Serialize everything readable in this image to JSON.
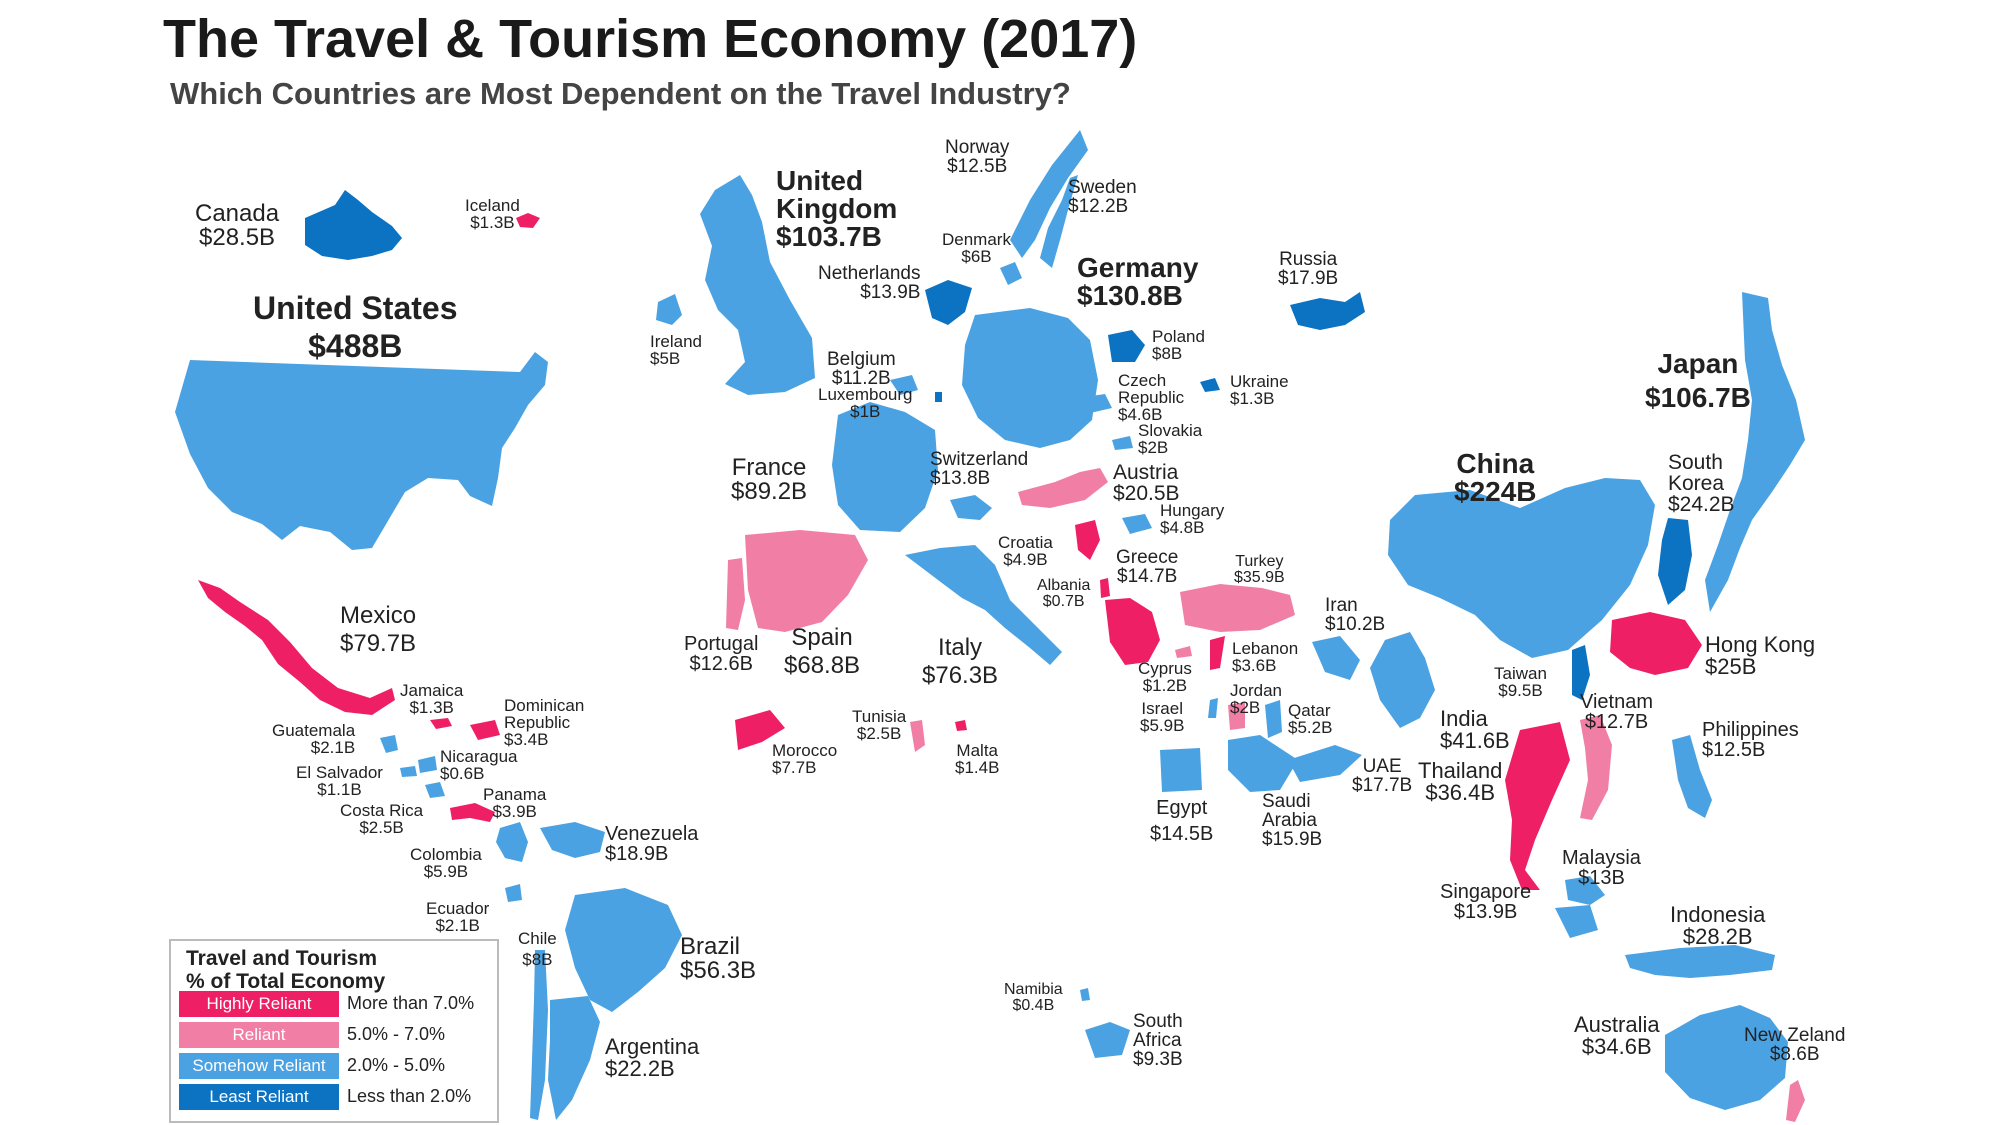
{
  "title": "The Travel & Tourism Economy (2017)",
  "subtitle": "Which Countries are Most Dependent on the Travel Industry?",
  "colors": {
    "highly": "#ef1f65",
    "reliant": "#f17ea5",
    "somehow": "#4aa2e3",
    "least": "#0c72c2"
  },
  "legend": {
    "title_1": "Travel and Tourism",
    "title_2": "% of Total Economy",
    "items": [
      {
        "label": "Highly Reliant",
        "range": "More than 7.0%",
        "color": "#ef1f65"
      },
      {
        "label": "Reliant",
        "range": "5.0% - 7.0%",
        "color": "#f17ea5"
      },
      {
        "label": "Somehow Reliant",
        "range": "2.0% - 5.0%",
        "color": "#4aa2e3"
      },
      {
        "label": "Least Reliant",
        "range": "Less than 2.0%",
        "color": "#0c72c2"
      }
    ]
  },
  "countries": {
    "canada": {
      "name": "Canada",
      "value": "$28.5B",
      "category": "least"
    },
    "iceland": {
      "name": "Iceland",
      "value": "$1.3B",
      "category": "highly"
    },
    "united_states": {
      "name": "United States",
      "value": "$488B",
      "category": "somehow"
    },
    "mexico": {
      "name": "Mexico",
      "value": "$79.7B",
      "category": "highly"
    },
    "jamaica": {
      "name": "Jamaica",
      "value": "$1.3B",
      "category": "highly"
    },
    "dominican_republic": {
      "name_1": "Dominican",
      "name_2": "Republic",
      "value": "$3.4B",
      "category": "highly"
    },
    "guatemala": {
      "name": "Guatemala",
      "value": "$2.1B",
      "category": "somehow"
    },
    "nicaragua": {
      "name": "Nicaragua",
      "value": "$0.6B",
      "category": "somehow"
    },
    "el_salvador": {
      "name": "El Salvador",
      "value": "$1.1B",
      "category": "somehow"
    },
    "panama": {
      "name": "Panama",
      "value": "$3.9B",
      "category": "highly"
    },
    "costa_rica": {
      "name": "Costa Rica",
      "value": "$2.5B",
      "category": "somehow"
    },
    "colombia": {
      "name": "Colombia",
      "value": "$5.9B",
      "category": "somehow"
    },
    "venezuela": {
      "name": "Venezuela",
      "value": "$18.9B",
      "category": "somehow"
    },
    "ecuador": {
      "name": "Ecuador",
      "value": "$2.1B",
      "category": "somehow"
    },
    "chile": {
      "name": "Chile",
      "value": "$8B",
      "category": "somehow"
    },
    "brazil": {
      "name": "Brazil",
      "value": "$56.3B",
      "category": "somehow"
    },
    "argentina": {
      "name": "Argentina",
      "value": "$22.2B",
      "category": "somehow"
    },
    "norway": {
      "name": "Norway",
      "value": "$12.5B",
      "category": "somehow"
    },
    "sweden": {
      "name": "Sweden",
      "value": "$12.2B",
      "category": "somehow"
    },
    "united_kingdom": {
      "name_1": "United",
      "name_2": "Kingdom",
      "value": "$103.7B",
      "category": "somehow"
    },
    "denmark": {
      "name": "Denmark",
      "value": "$6B",
      "category": "somehow"
    },
    "netherlands": {
      "name": "Netherlands",
      "value": "$13.9B",
      "category": "least"
    },
    "ireland": {
      "name": "Ireland",
      "value": "$5B",
      "category": "somehow"
    },
    "belgium": {
      "name": "Belgium",
      "value": "$11.2B",
      "category": "somehow"
    },
    "luxembourg": {
      "name": "Luxembourg",
      "value": "$1B",
      "category": "least"
    },
    "germany": {
      "name": "Germany",
      "value": "$130.8B",
      "category": "somehow"
    },
    "poland": {
      "name": "Poland",
      "value": "$8B",
      "category": "least"
    },
    "russia": {
      "name": "Russia",
      "value": "$17.9B",
      "category": "least"
    },
    "czech_republic": {
      "name_1": "Czech",
      "name_2": "Republic",
      "value": "$4.6B",
      "category": "somehow"
    },
    "ukraine": {
      "name": "Ukraine",
      "value": "$1.3B",
      "category": "least"
    },
    "slovakia": {
      "name": "Slovakia",
      "value": "$2B",
      "category": "somehow"
    },
    "france": {
      "name": "France",
      "value": "$89.2B",
      "category": "somehow"
    },
    "switzerland": {
      "name": "Switzerland",
      "value": "$13.8B",
      "category": "somehow"
    },
    "austria": {
      "name": "Austria",
      "value": "$20.5B",
      "category": "reliant"
    },
    "hungary": {
      "name": "Hungary",
      "value": "$4.8B",
      "category": "somehow"
    },
    "croatia": {
      "name": "Croatia",
      "value": "$4.9B",
      "category": "highly"
    },
    "greece": {
      "name": "Greece",
      "value": "$14.7B",
      "category": "highly"
    },
    "turkey": {
      "name": "Turkey",
      "value": "$35.9B",
      "category": "reliant"
    },
    "albania": {
      "name": "Albania",
      "value": "$0.7B",
      "category": "highly"
    },
    "portugal": {
      "name": "Portugal",
      "value": "$12.6B",
      "category": "reliant"
    },
    "spain": {
      "name": "Spain",
      "value": "$68.8B",
      "category": "reliant"
    },
    "italy": {
      "name": "Italy",
      "value": "$76.3B",
      "category": "somehow"
    },
    "tunisia": {
      "name": "Tunisia",
      "value": "$2.5B",
      "category": "reliant"
    },
    "morocco": {
      "name": "Morocco",
      "value": "$7.7B",
      "category": "highly"
    },
    "malta": {
      "name": "Malta",
      "value": "$1.4B",
      "category": "highly"
    },
    "cyprus": {
      "name": "Cyprus",
      "value": "$1.2B",
      "category": "reliant"
    },
    "lebanon": {
      "name": "Lebanon",
      "value": "$3.6B",
      "category": "highly"
    },
    "jordan": {
      "name": "Jordan",
      "value": "$2B",
      "category": "reliant"
    },
    "israel": {
      "name": "Israel",
      "value": "$5.9B",
      "category": "somehow"
    },
    "qatar": {
      "name": "Qatar",
      "value": "$5.2B",
      "category": "somehow"
    },
    "iran": {
      "name": "Iran",
      "value": "$10.2B",
      "category": "somehow"
    },
    "uae": {
      "name": "UAE",
      "value": "$17.7B",
      "category": "somehow"
    },
    "egypt": {
      "name": "Egypt",
      "value": "$14.5B",
      "category": "somehow"
    },
    "saudi_arabia": {
      "name_1": "Saudi",
      "name_2": "Arabia",
      "value": "$15.9B",
      "category": "somehow"
    },
    "india": {
      "name": "India",
      "value": "$41.6B",
      "category": "somehow"
    },
    "china": {
      "name": "China",
      "value": "$224B",
      "category": "somehow"
    },
    "south_korea": {
      "name_1": "South",
      "name_2": "Korea",
      "value": "$24.2B",
      "category": "least"
    },
    "japan": {
      "name": "Japan",
      "value": "$106.7B",
      "category": "somehow"
    },
    "taiwan": {
      "name": "Taiwan",
      "value": "$9.5B",
      "category": "least"
    },
    "hong_kong": {
      "name": "Hong Kong",
      "value": "$25B",
      "category": "highly"
    },
    "vietnam": {
      "name": "Vietnam",
      "value": "$12.7B",
      "category": "reliant"
    },
    "philippines": {
      "name": "Philippines",
      "value": "$12.5B",
      "category": "somehow"
    },
    "thailand": {
      "name": "Thailand",
      "value": "$36.4B",
      "category": "highly"
    },
    "malaysia": {
      "name": "Malaysia",
      "value": "$13B",
      "category": "somehow"
    },
    "singapore": {
      "name": "Singapore",
      "value": "$13.9B",
      "category": "somehow"
    },
    "indonesia": {
      "name": "Indonesia",
      "value": "$28.2B",
      "category": "somehow"
    },
    "australia": {
      "name": "Australia",
      "value": "$34.6B",
      "category": "somehow"
    },
    "new_zealand": {
      "name": "New Zeland",
      "value": "$8.6B",
      "category": "reliant"
    },
    "namibia": {
      "name": "Namibia",
      "value": "$0.4B",
      "category": "somehow"
    },
    "south_africa": {
      "name_1": "South",
      "name_2": "Africa",
      "value": "$9.3B",
      "category": "somehow"
    }
  }
}
